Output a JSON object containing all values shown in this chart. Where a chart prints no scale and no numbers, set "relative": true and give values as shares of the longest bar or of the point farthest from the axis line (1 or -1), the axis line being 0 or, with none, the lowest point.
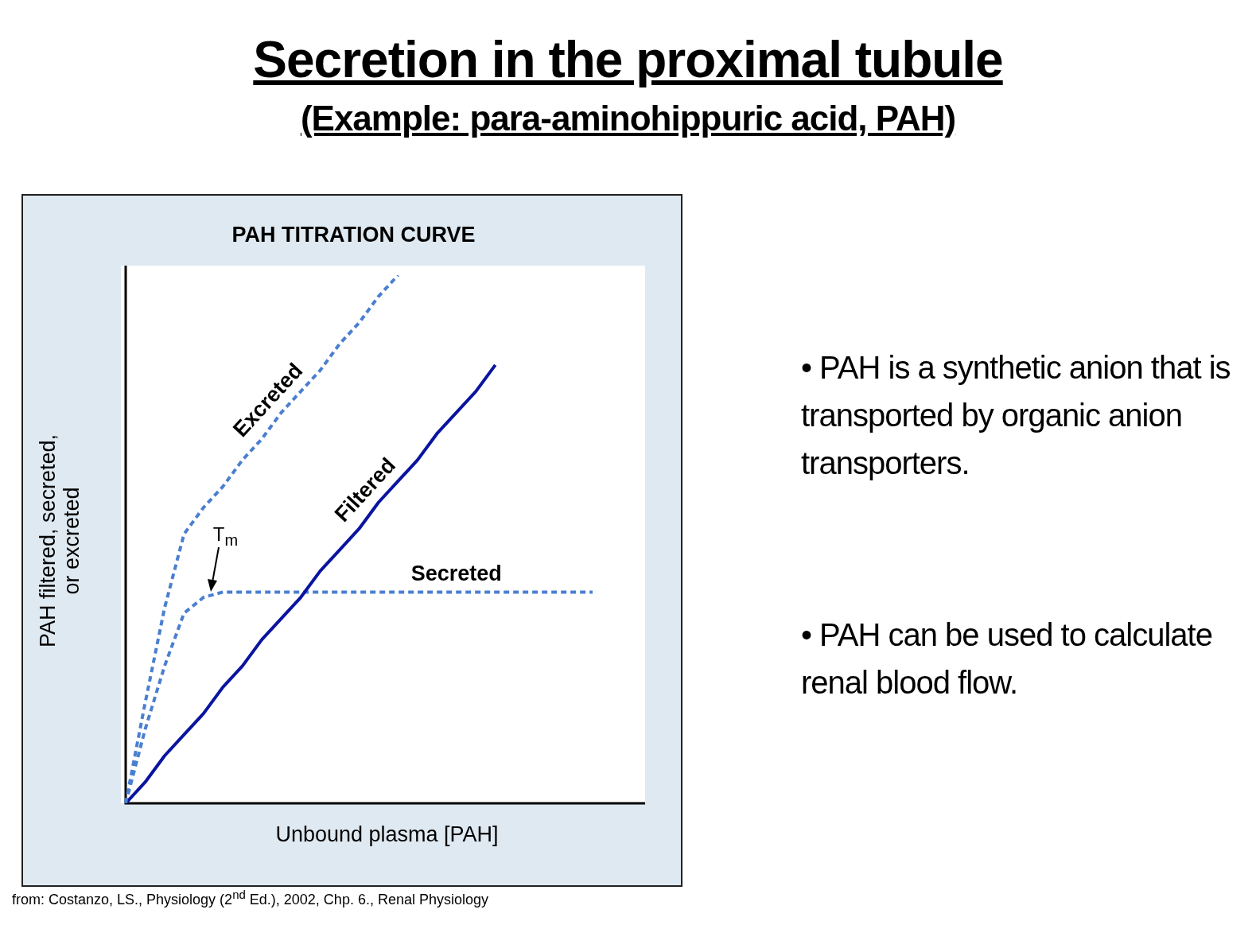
{
  "chart_data": {
    "type": "line",
    "title": "Secretion in the proximal tubule",
    "subtitle": "(Example: para-aminohippuric acid, PAH)",
    "xlabel": "Unbound plasma [PAH]",
    "ylabel": "PAH filtered, secreted,\nor excreted",
    "relative": true,
    "legend": false,
    "marker": "none",
    "categories": [
      null,
      null,
      null,
      null,
      null,
      null,
      null,
      null,
      null,
      null,
      null,
      null,
      null,
      null,
      null,
      null,
      null,
      null,
      null,
      null,
      null,
      null,
      null,
      null,
      null
    ],
    "series": [
      {
        "name": "Excreted",
        "color": "#4a7fd0",
        "line_style": "dashed",
        "values": [
          0,
          0.19,
          0.37,
          0.51,
          0.56,
          0.6,
          0.65,
          0.69,
          0.74,
          0.78,
          0.82,
          0.87,
          0.91,
          0.96,
          1.0,
          null,
          null,
          null,
          null,
          null,
          null,
          null,
          null,
          null,
          null
        ]
      },
      {
        "name": "Filtered",
        "color": "#0a14a0",
        "line_style": "solid",
        "values": [
          0,
          0.04,
          0.09,
          0.13,
          0.17,
          0.22,
          0.26,
          0.31,
          0.35,
          0.39,
          0.44,
          0.48,
          0.52,
          0.57,
          0.61,
          0.65,
          0.7,
          0.74,
          0.78,
          0.83,
          null,
          null,
          null,
          null,
          null
        ]
      },
      {
        "name": "Secreted",
        "color": "#4a7fd0",
        "line_style": "dashed",
        "values": [
          0,
          0.14,
          0.26,
          0.36,
          0.39,
          0.4,
          0.4,
          0.4,
          0.4,
          0.4,
          0.4,
          0.4,
          0.4,
          0.4,
          0.4,
          0.4,
          0.4,
          0.4,
          0.4,
          0.4,
          0.4,
          0.4,
          0.4,
          0.4,
          0.4
        ]
      }
    ],
    "annotations": [
      "PAH TITRATION CURVE",
      "• PAH is a synthetic anion that is transported by organic anion transporters.",
      "• PAH can be used to calculate renal blood flow.",
      "from: Costanzo, LS., Physiology (2$^{nd}$ Ed.), 2002, Chp. 6., Renal Physiology",
      {
        "text": "T$_{m}$",
        "y": 0.4
      }
    ]
  }
}
